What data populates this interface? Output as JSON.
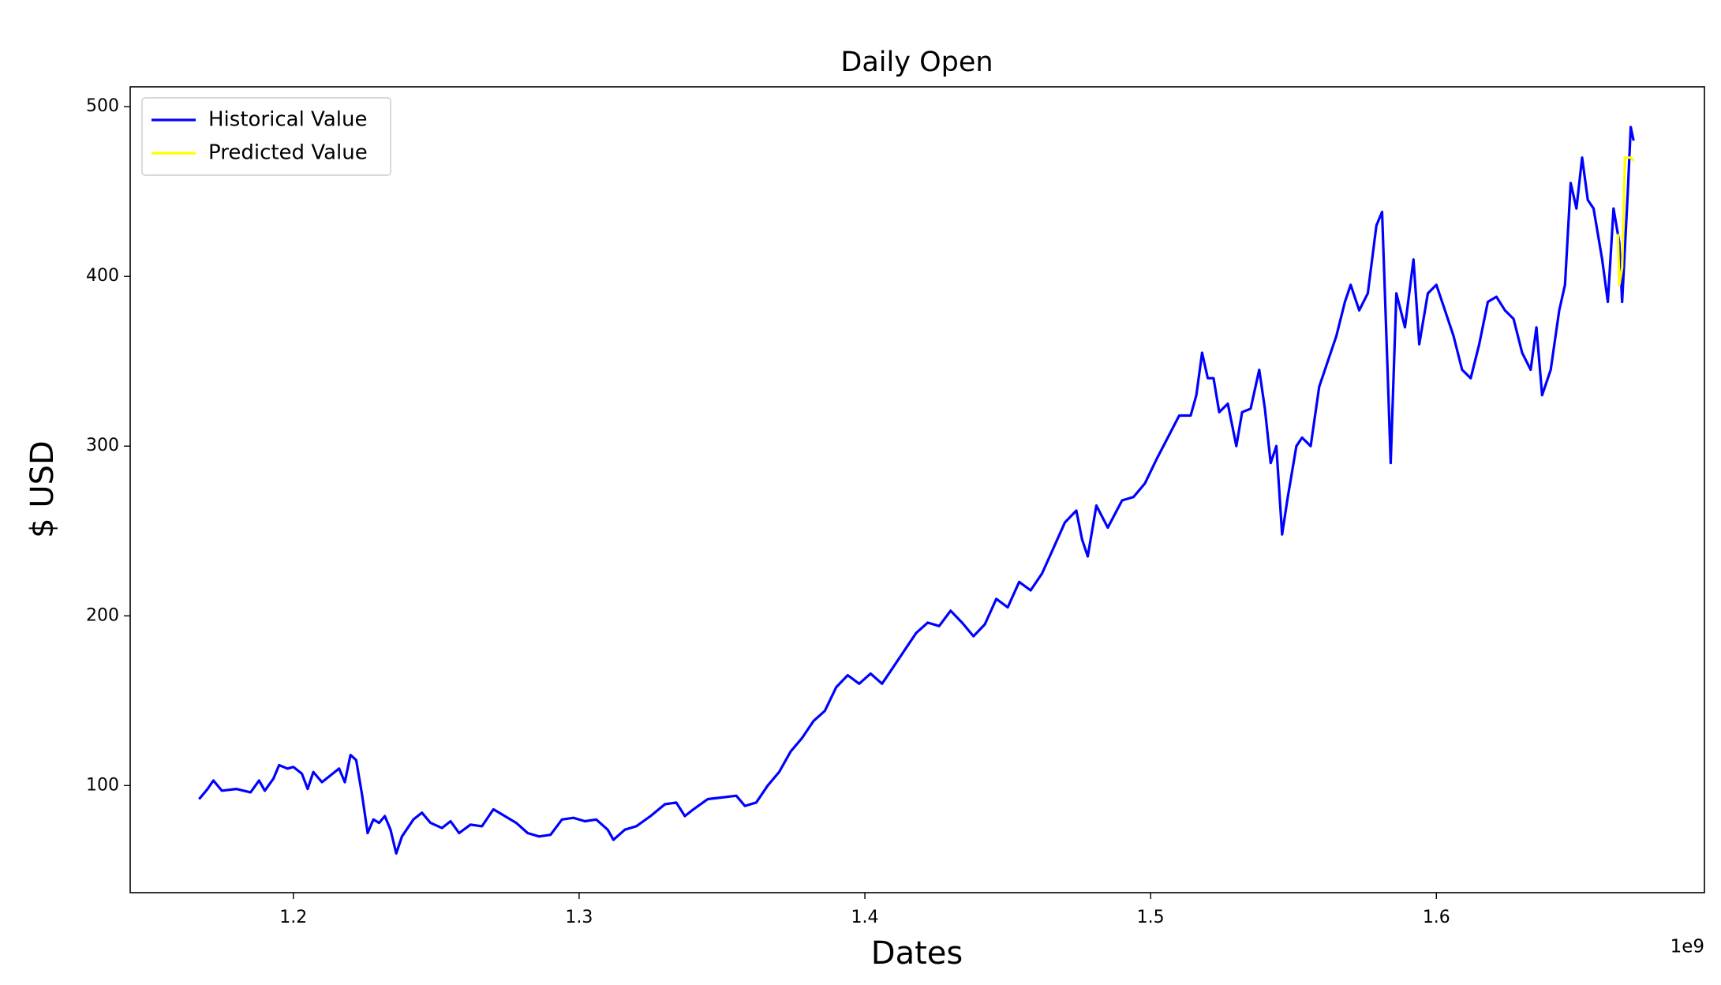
{
  "chart_data": {
    "type": "line",
    "title": "Daily Open",
    "xlabel": "Dates",
    "ylabel": "$ USD",
    "x_offset_label": "1e9",
    "xlim": [
      1.1429,
      1.6938
    ],
    "ylim": [
      36.9,
      511.7
    ],
    "xticks": [
      1.2,
      1.3,
      1.4,
      1.5,
      1.6
    ],
    "yticks": [
      100,
      200,
      300,
      400,
      500
    ],
    "legend": "upper left",
    "grid": false,
    "series": [
      {
        "name": "Historical Value",
        "color": "#0000ff",
        "x": [
          1.167,
          1.17,
          1.172,
          1.175,
          1.18,
          1.185,
          1.188,
          1.19,
          1.193,
          1.195,
          1.198,
          1.2,
          1.203,
          1.205,
          1.207,
          1.21,
          1.213,
          1.216,
          1.218,
          1.22,
          1.222,
          1.224,
          1.226,
          1.228,
          1.23,
          1.232,
          1.234,
          1.236,
          1.238,
          1.242,
          1.245,
          1.248,
          1.252,
          1.255,
          1.258,
          1.262,
          1.266,
          1.27,
          1.274,
          1.278,
          1.282,
          1.286,
          1.29,
          1.294,
          1.298,
          1.302,
          1.306,
          1.31,
          1.312,
          1.316,
          1.32,
          1.325,
          1.33,
          1.334,
          1.337,
          1.34,
          1.345,
          1.35,
          1.355,
          1.358,
          1.362,
          1.366,
          1.37,
          1.374,
          1.378,
          1.382,
          1.386,
          1.39,
          1.394,
          1.398,
          1.402,
          1.406,
          1.41,
          1.414,
          1.418,
          1.422,
          1.426,
          1.43,
          1.434,
          1.438,
          1.442,
          1.446,
          1.45,
          1.454,
          1.458,
          1.462,
          1.466,
          1.47,
          1.474,
          1.476,
          1.478,
          1.481,
          1.485,
          1.49,
          1.494,
          1.498,
          1.502,
          1.506,
          1.51,
          1.514,
          1.516,
          1.518,
          1.52,
          1.522,
          1.524,
          1.527,
          1.53,
          1.532,
          1.535,
          1.538,
          1.54,
          1.542,
          1.544,
          1.546,
          1.548,
          1.551,
          1.553,
          1.556,
          1.559,
          1.562,
          1.565,
          1.568,
          1.57,
          1.573,
          1.576,
          1.579,
          1.581,
          1.583,
          1.584,
          1.586,
          1.589,
          1.592,
          1.594,
          1.597,
          1.6,
          1.603,
          1.606,
          1.609,
          1.612,
          1.615,
          1.618,
          1.621,
          1.624,
          1.627,
          1.63,
          1.633,
          1.635,
          1.637,
          1.64,
          1.643,
          1.645,
          1.647,
          1.649,
          1.651,
          1.653,
          1.655,
          1.658,
          1.66,
          1.662,
          1.664,
          1.665,
          1.667,
          1.668,
          1.669
        ],
        "values": [
          92,
          98,
          103,
          97,
          98,
          96,
          103,
          97,
          104,
          112,
          110,
          111,
          107,
          98,
          108,
          102,
          106,
          110,
          102,
          118,
          115,
          95,
          72,
          80,
          78,
          82,
          74,
          60,
          70,
          80,
          84,
          78,
          75,
          79,
          72,
          77,
          76,
          86,
          82,
          78,
          72,
          70,
          71,
          80,
          81,
          79,
          80,
          74,
          68,
          74,
          76,
          82,
          89,
          90,
          82,
          86,
          92,
          93,
          94,
          88,
          90,
          100,
          108,
          120,
          128,
          138,
          144,
          158,
          165,
          160,
          166,
          160,
          170,
          180,
          190,
          196,
          194,
          203,
          196,
          188,
          195,
          210,
          205,
          220,
          215,
          225,
          240,
          255,
          262,
          245,
          235,
          265,
          252,
          268,
          270,
          278,
          292,
          305,
          318,
          318,
          330,
          355,
          340,
          340,
          320,
          325,
          300,
          320,
          322,
          345,
          322,
          290,
          300,
          248,
          270,
          300,
          305,
          300,
          335,
          350,
          365,
          385,
          395,
          380,
          390,
          430,
          438,
          340,
          290,
          390,
          370,
          410,
          360,
          390,
          395,
          380,
          365,
          345,
          340,
          360,
          385,
          388,
          380,
          375,
          355,
          345,
          370,
          330,
          345,
          380,
          395,
          455,
          440,
          470,
          445,
          440,
          410,
          385,
          440,
          420,
          385,
          450,
          488,
          480
        ]
      },
      {
        "name": "Predicted Value",
        "color": "#ffff00",
        "x": [
          1.6635,
          1.664,
          1.665,
          1.666,
          1.668,
          1.669
        ],
        "values": [
          425,
          395,
          405,
          470,
          470,
          468
        ]
      }
    ]
  }
}
